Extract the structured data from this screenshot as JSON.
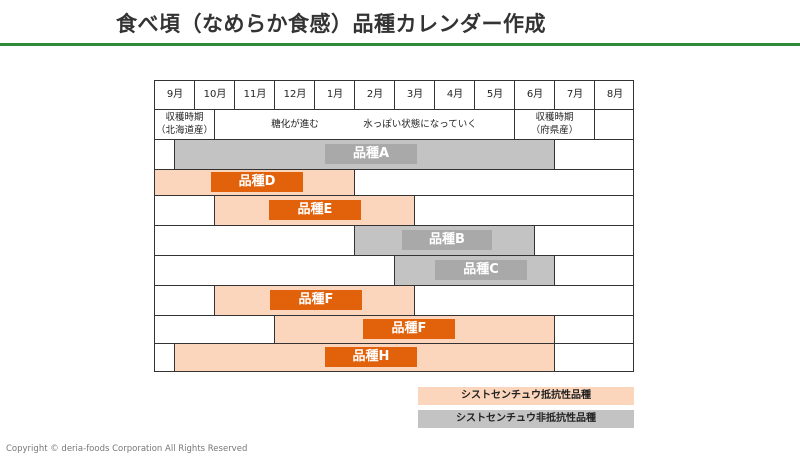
{
  "title": "食べ頃（なめらか食感）品種カレンダー作成",
  "months": [
    "9月",
    "10月",
    "11月",
    "12月",
    "1月",
    "2月",
    "3月",
    "4月",
    "5月",
    "6月",
    "7月",
    "8月"
  ],
  "notes": {
    "harvest_hokkaido": "収穫時期\n（北海道産）",
    "sugar": "糖化が進む",
    "watery": "水っぽい状態になっていく",
    "harvest_prefecture": "収穫時期\n（府県産）"
  },
  "varieties": [
    {
      "name": "品種A",
      "type": "gray"
    },
    {
      "name": "品種D",
      "type": "peach"
    },
    {
      "name": "品種E",
      "type": "peach"
    },
    {
      "name": "品種B",
      "type": "gray"
    },
    {
      "name": "品種C",
      "type": "gray"
    },
    {
      "name": "品種F",
      "type": "peach"
    },
    {
      "name": "品種F",
      "type": "peach"
    },
    {
      "name": "品種H",
      "type": "peach"
    }
  ],
  "legend": {
    "resistant": "シストセンチュウ抵抗性品種",
    "non_resistant": "シストセンチュウ非抵抗性品種"
  },
  "colors": {
    "brand_rule": "#2e8b3a",
    "gray_bar": "#c3c3c3",
    "gray_label": "#a9a9a9",
    "peach_bar": "#fbd6bc",
    "orange_label": "#e2610b"
  },
  "copyright": "Copyright © deria-foods Corporation All Rights Reserved"
}
